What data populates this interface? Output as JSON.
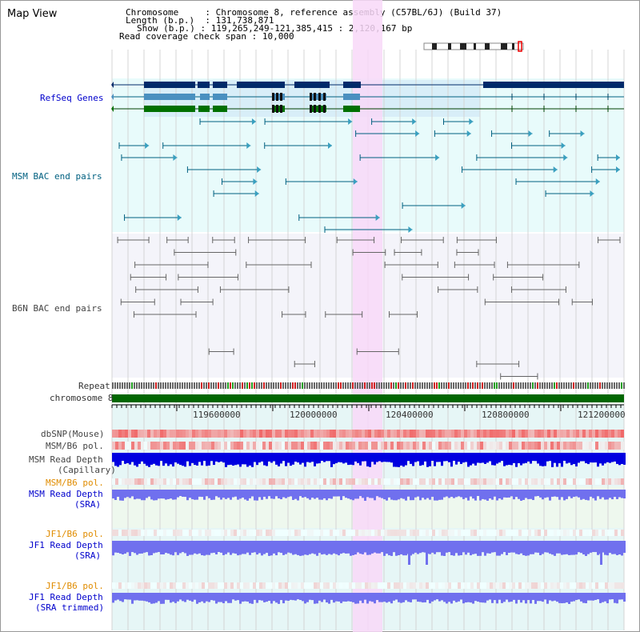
{
  "page_title": "Map View",
  "info": {
    "chromosome_key": "Chromosome",
    "chromosome_value": "Chromosome 8, reference assembly (C57BL/6J) (Build 37)",
    "length_key": "Length (b.p.)",
    "length_value": "131,738,871",
    "show_key": "Show (b.p.)",
    "show_value": "119,265,249-121,385,415 : 2,120,167 bp",
    "coverage_key": "Read coverage check span",
    "coverage_value": "10,000"
  },
  "tracks": {
    "refseq": "RefSeq Genes",
    "msm_bac": "MSM BAC end pairs",
    "b6n_bac": "B6N BAC end pairs",
    "repeat": "Repeat",
    "chromosome": "chromosome 8",
    "dbsnp": "dbSNP(Mouse)",
    "msm_b6_pol": "MSM/B6 pol.",
    "msm_read_depth_cap_1": "MSM Read Depth",
    "msm_read_depth_cap_2": "(Capillary)",
    "msm_b6_pol_2": "MSM/B6 pol.",
    "msm_read_depth_sra_1": "MSM Read Depth",
    "msm_read_depth_sra_2": "(SRA)",
    "jf1_b6_pol": "JF1/B6 pol.",
    "jf1_read_depth_sra_1": "JF1 Read Depth",
    "jf1_read_depth_sra_2": "(SRA)",
    "jf1_b6_pol_2": "JF1/B6 pol.",
    "jf1_read_depth_trim_1": "JF1 Read Depth",
    "jf1_read_depth_trim_2": "(SRA trimmed)"
  },
  "axis": {
    "ticks": [
      "119600000",
      "120000000",
      "120400000",
      "120800000",
      "121200000"
    ]
  },
  "colors": {
    "refseq_dark": "#002a6a",
    "refseq_mid": "#4a90c0",
    "refseq_green": "#007000",
    "highlight": "#f8d8f8",
    "chromosome_bar": "#006600",
    "depth_capillary": "#0000e0",
    "depth_sra": "#7070ee",
    "pol_red": "#e02020"
  }
}
